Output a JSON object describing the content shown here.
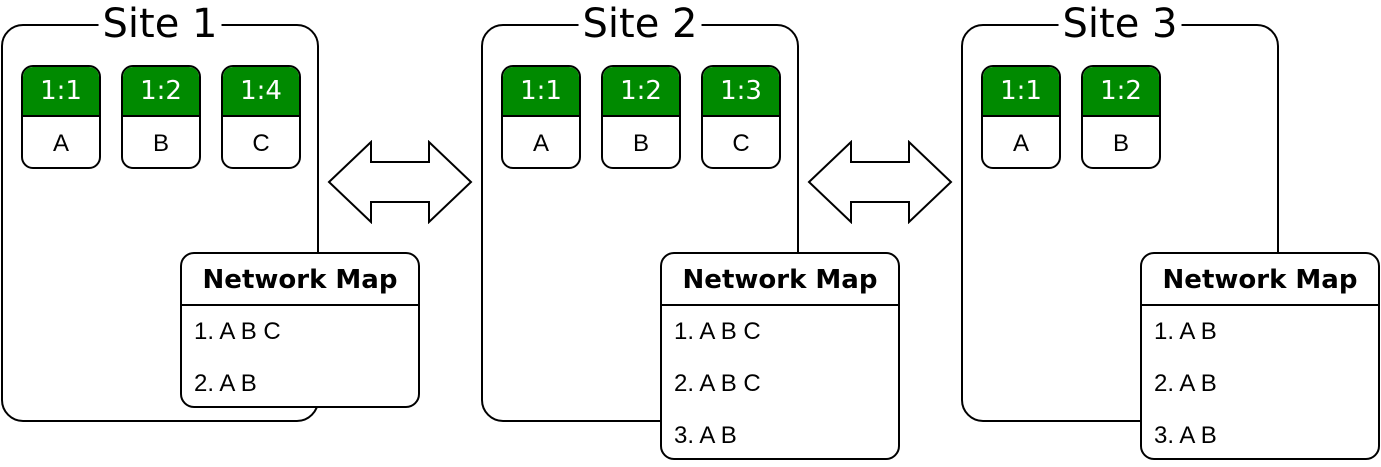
{
  "sites": [
    {
      "title": "Site 1",
      "items": [
        {
          "version": "1:1",
          "name": "A"
        },
        {
          "version": "1:2",
          "name": "B"
        },
        {
          "version": "1:4",
          "name": "C"
        }
      ],
      "network_map": {
        "title": "Network Map",
        "rows": [
          "1. A B C",
          "2. A B"
        ]
      }
    },
    {
      "title": "Site 2",
      "items": [
        {
          "version": "1:1",
          "name": "A"
        },
        {
          "version": "1:2",
          "name": "B"
        },
        {
          "version": "1:3",
          "name": "C"
        }
      ],
      "network_map": {
        "title": "Network Map",
        "rows": [
          "1. A B C",
          "2. A B C",
          "3. A B"
        ]
      }
    },
    {
      "title": "Site 3",
      "items": [
        {
          "version": "1:1",
          "name": "A"
        },
        {
          "version": "1:2",
          "name": "B"
        }
      ],
      "network_map": {
        "title": "Network Map",
        "rows": [
          "1. A B",
          "2. A B",
          "3. A B"
        ]
      }
    }
  ],
  "colors": {
    "item_header": "#008a00",
    "border": "#000000"
  }
}
